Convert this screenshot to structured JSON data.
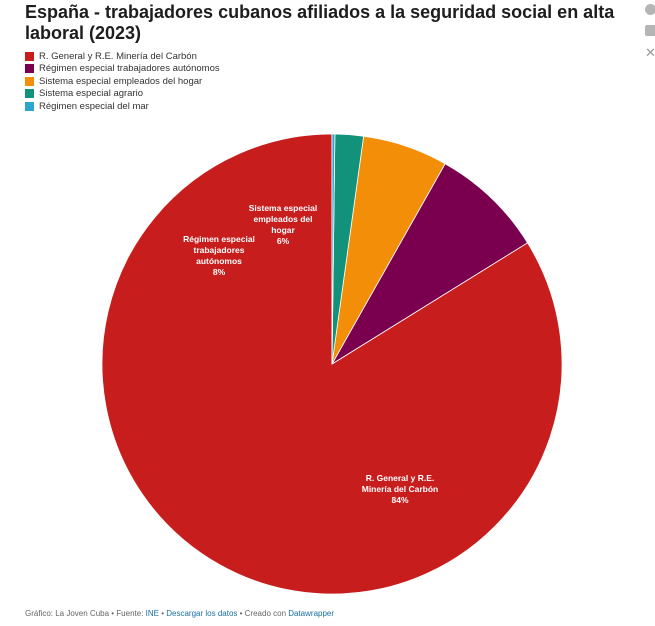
{
  "chart_data": {
    "type": "pie",
    "title": "España - trabajadores cubanos afiliados a la seguridad social en alta laboral (2023)",
    "slices": [
      {
        "name": "R. General y R.E. Minería del Carbón",
        "value": 84,
        "label": "84%",
        "color": "#c71e1d"
      },
      {
        "name": "Régimen especial trabajadores autónomos",
        "value": 8,
        "label": "8%",
        "color": "#7a004f"
      },
      {
        "name": "Sistema especial empleados del hogar",
        "value": 6,
        "label": "6%",
        "color": "#f28e08"
      },
      {
        "name": "Sistema especial agrario",
        "value": 2,
        "label": "",
        "color": "#12917b"
      },
      {
        "name": "Régimen especial del mar",
        "value": 0.2,
        "label": "",
        "color": "#2aa6cf"
      }
    ],
    "legend_position": "top-left"
  },
  "footer": {
    "prefix": "Gráfico: La Joven Cuba • Fuente: ",
    "source": "INE",
    "sep1": " • ",
    "download": "Descargar los datos",
    "sep2": " • Creado con ",
    "tool": "Datawrapper"
  },
  "side_icons": [
    "facebook-icon",
    "linkedin-icon",
    "x-icon"
  ]
}
